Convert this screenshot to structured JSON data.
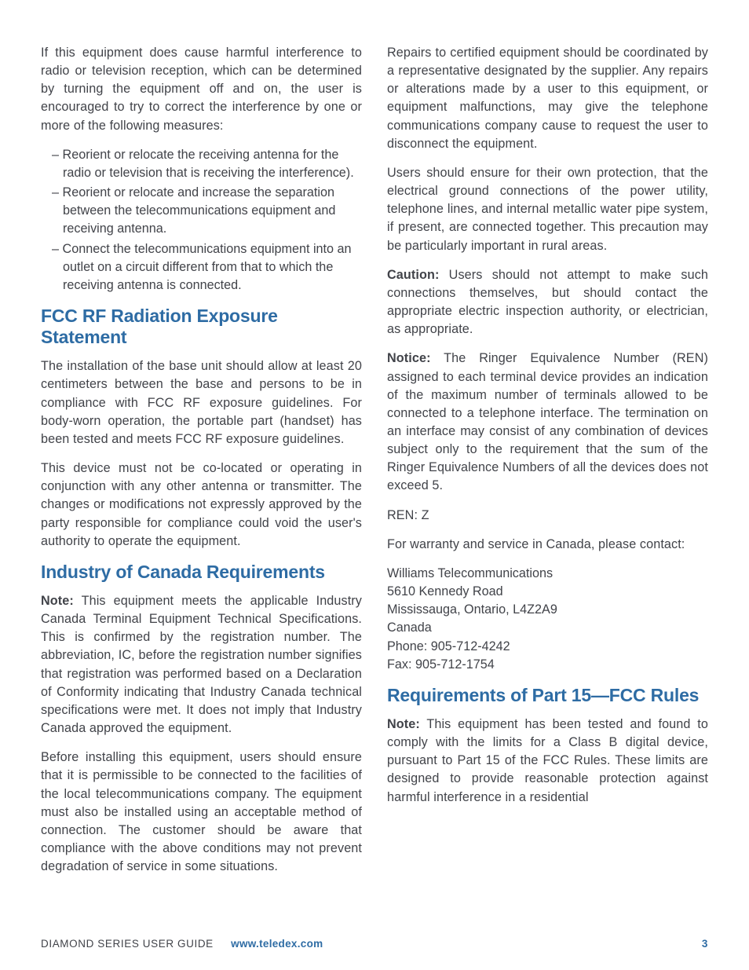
{
  "col": {
    "intro": "If this equipment does cause harmful interference to radio or television reception, which can be determined by turning the equipment off and on, the user is encouraged to try to correct the interference by one or more of the following measures:",
    "bullets": [
      "Reorient or relocate the receiving antenna for the radio or television that is receiving the interference).",
      "Reorient or relocate and increase the separation between the telecommunications equipment and receiving antenna.",
      "Connect the telecommunications equipment into an outlet on a circuit different from that to which the receiving antenna is connected."
    ],
    "h_fcc": "FCC RF Radiation Exposure Statement",
    "fcc_p1": "The installation of the base unit should allow at least 20 centimeters between the base and persons to be in compliance with FCC RF exposure guidelines. For body-worn operation, the portable part (handset) has been tested and meets FCC RF exposure guidelines.",
    "fcc_p2": "This device must not be co-located or operating in conjunction with any other antenna or transmitter. The changes or modifications not expressly approved by the party responsible for compliance could void the user's authority to operate the equipment.",
    "h_ic": "Industry of Canada Requirements",
    "ic_note_label": "Note:",
    "ic_note": " This equipment meets the applicable Industry Canada Terminal Equipment Technical Specifications. This is confirmed by the registration number. The abbreviation, IC, before the registration number signifies that registration was performed based on a Declaration of Conformity indicating that Industry Canada technical specifications were met. It does not imply that Industry Canada approved the equipment.",
    "ic_p2": "Before installing this equipment, users should ensure that it is permissible to be connected to the facilities of the local telecommunications company. The equipment must also be installed using an acceptable method of connection. The customer should be aware that compliance with the above conditions may not prevent degradation of service in some situations.",
    "ic_p3": "Repairs to certified equipment should be coordinated by a representative designated by the supplier. Any repairs or alterations made by a user to this equipment, or equipment malfunctions, may give the telephone communications company cause to request the user to disconnect the equipment.",
    "ic_p4": "Users should ensure for their own protection, that the electrical ground connections of the power utility, telephone lines, and internal metallic water pipe system, if present, are connected together. This precaution may be particularly important in rural areas.",
    "caution_label": "Caution:",
    "caution": " Users should not attempt to make such connections themselves, but should contact the appropriate electric inspection authority, or electrician, as appropriate.",
    "notice_label": "Notice:",
    "notice": " The Ringer Equivalence Number (REN) assigned to each terminal device provides an indication of the maximum number of terminals allowed to be connected to a telephone interface. The termination on an interface may consist of any combination of devices subject only to the requirement that the sum of the Ringer Equivalence Numbers of all the devices does not exceed 5.",
    "ren": "REN: Z",
    "warranty": "For warranty and service in Canada, please contact:",
    "addr1": "Williams Telecommunications",
    "addr2": "5610 Kennedy Road",
    "addr3": "Mississauga, Ontario, L4Z2A9",
    "addr4": "Canada",
    "addr5": "Phone: 905-712-4242",
    "addr6": "Fax: 905-712-1754",
    "h_p15": "Requirements of Part 15—FCC Rules",
    "p15_note_label": "Note:",
    "p15_note": " This equipment has been tested and found to comply with the limits for a Class B digital device, pursuant to Part 15 of the FCC Rules. These limits are designed to provide reasonable protection against harmful interference in a residential"
  },
  "footer": {
    "guide": "DIAMOND SERIES USER GUIDE",
    "url": "www.teledex.com",
    "page": "3"
  }
}
